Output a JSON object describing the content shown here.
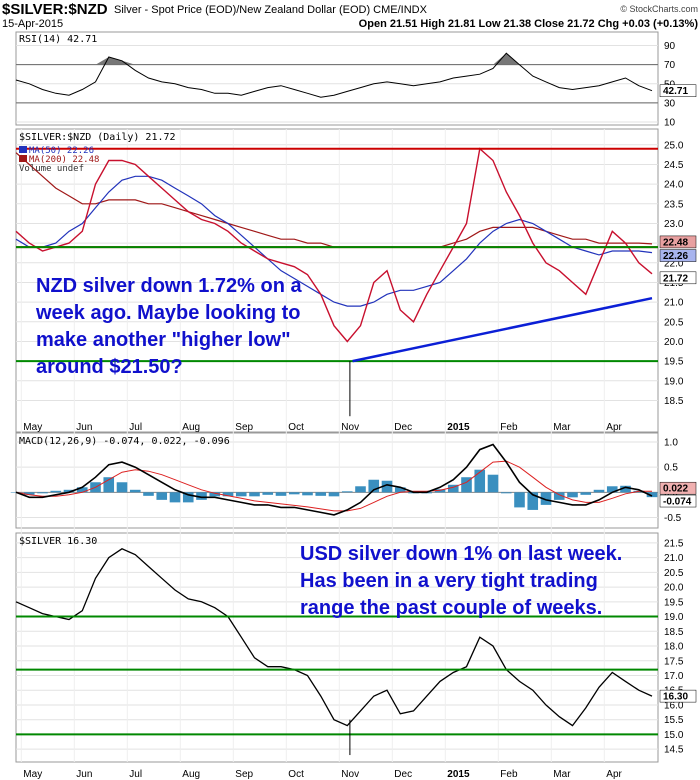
{
  "header": {
    "title": "$SILVER:$NZD",
    "subtitle": "Silver - Spot Price (EOD)/New Zealand Dollar (EOD)  CME/INDX",
    "copyright": "© StockCharts.com",
    "date": "15-Apr-2015",
    "ohlc": "Open 21.51  High 21.81  Low 21.38  Close 21.72  Chg +0.03 (+0.13%)"
  },
  "x_axis": {
    "months": [
      "May",
      "Jun",
      "Jul",
      "Aug",
      "Sep",
      "Oct",
      "Nov",
      "Dec",
      "2015",
      "Feb",
      "Mar",
      "Apr"
    ]
  },
  "chart_data": [
    {
      "type": "line",
      "name": "rsi",
      "label": "RSI(14) 42.71",
      "ylim": [
        10,
        100
      ],
      "ticks": [
        90,
        70,
        50,
        30,
        10
      ],
      "reference_lines": [
        70,
        30
      ],
      "last_value": "42.71",
      "x": [
        0,
        5,
        10,
        15,
        20,
        25,
        30,
        35,
        40,
        45,
        50,
        55,
        60,
        65,
        70,
        75,
        80,
        85,
        90,
        95,
        100,
        105,
        110,
        115,
        120,
        125,
        130,
        135,
        140,
        145,
        150,
        155,
        160,
        165,
        170,
        175,
        180,
        185,
        190,
        195,
        200,
        205,
        210,
        215,
        220,
        225,
        230,
        235,
        240
      ],
      "values": [
        54,
        50,
        44,
        40,
        38,
        44,
        52,
        78,
        74,
        64,
        56,
        52,
        50,
        46,
        44,
        40,
        40,
        38,
        42,
        46,
        48,
        44,
        40,
        36,
        38,
        42,
        46,
        50,
        52,
        50,
        48,
        50,
        52,
        56,
        58,
        60,
        66,
        82,
        70,
        58,
        52,
        46,
        44,
        46,
        48,
        52,
        56,
        48,
        42.71
      ]
    },
    {
      "type": "line",
      "name": "nzd_price",
      "label": "$SILVER:$NZD (Daily) 21.72",
      "legend": [
        "MA(50) 22.26",
        "MA(200) 22.48",
        "Volume undef"
      ],
      "ylim": [
        17.8,
        25.3
      ],
      "ticks": [
        25.0,
        24.5,
        24.0,
        23.5,
        23.0,
        22.5,
        22.0,
        21.5,
        21.0,
        20.5,
        20.0,
        19.5,
        19.0,
        18.5
      ],
      "last_labels": [
        "22.48",
        "22.26",
        "21.72"
      ],
      "horizontal_lines": [
        24.9,
        22.4,
        19.5
      ],
      "trendline": [
        [
          127,
          19.5
        ],
        [
          240,
          21.1
        ]
      ],
      "x": [
        0,
        5,
        10,
        15,
        20,
        25,
        30,
        35,
        40,
        45,
        50,
        55,
        60,
        65,
        70,
        75,
        80,
        85,
        90,
        95,
        100,
        105,
        110,
        115,
        120,
        125,
        130,
        135,
        140,
        145,
        150,
        155,
        160,
        165,
        170,
        175,
        180,
        185,
        190,
        195,
        200,
        205,
        210,
        215,
        220,
        225,
        230,
        235,
        240
      ],
      "values": [
        22.8,
        22.5,
        22.3,
        22.4,
        22.5,
        22.8,
        24.0,
        24.6,
        24.6,
        24.5,
        24.2,
        23.9,
        23.6,
        23.3,
        23.1,
        23.0,
        22.8,
        22.5,
        22.3,
        22.1,
        22.0,
        21.9,
        21.7,
        21.2,
        20.4,
        20.0,
        20.4,
        21.5,
        21.8,
        20.8,
        20.5,
        21.2,
        21.8,
        22.4,
        23.0,
        24.9,
        24.6,
        23.8,
        23.2,
        22.5,
        22.0,
        21.8,
        21.5,
        21.2,
        22.0,
        22.8,
        22.5,
        22.0,
        21.72
      ],
      "ma50": [
        22.6,
        22.4,
        22.4,
        22.5,
        22.8,
        23.0,
        23.4,
        23.8,
        24.1,
        24.2,
        24.2,
        24.1,
        23.9,
        23.7,
        23.5,
        23.2,
        23.0,
        22.7,
        22.4,
        22.1,
        21.8,
        21.6,
        21.4,
        21.2,
        21.0,
        20.9,
        20.9,
        21.0,
        21.2,
        21.3,
        21.3,
        21.4,
        21.5,
        21.8,
        22.1,
        22.5,
        22.8,
        23.0,
        23.1,
        23.0,
        22.8,
        22.6,
        22.4,
        22.3,
        22.2,
        22.3,
        22.3,
        22.3,
        22.26
      ],
      "ma200": [
        24.8,
        24.5,
        24.2,
        23.9,
        23.7,
        23.5,
        23.5,
        23.6,
        23.6,
        23.6,
        23.5,
        23.5,
        23.4,
        23.3,
        23.2,
        23.1,
        23.0,
        22.9,
        22.8,
        22.7,
        22.6,
        22.6,
        22.5,
        22.5,
        22.4,
        22.4,
        22.4,
        22.4,
        22.4,
        22.4,
        22.4,
        22.4,
        22.4,
        22.5,
        22.6,
        22.8,
        22.9,
        22.9,
        22.9,
        22.9,
        22.8,
        22.7,
        22.6,
        22.6,
        22.5,
        22.5,
        22.5,
        22.5,
        22.48
      ]
    },
    {
      "type": "line",
      "name": "macd",
      "label": "MACD(12,26,9) -0.074, 0.022, -0.096",
      "ylim": [
        -0.65,
        1.1
      ],
      "ticks": [
        1.0,
        0.5,
        0.0,
        -0.5
      ],
      "last_labels": [
        "0.022",
        "-0.074"
      ],
      "x": [
        0,
        5,
        10,
        15,
        20,
        25,
        30,
        35,
        40,
        45,
        50,
        55,
        60,
        65,
        70,
        75,
        80,
        85,
        90,
        95,
        100,
        105,
        110,
        115,
        120,
        125,
        130,
        135,
        140,
        145,
        150,
        155,
        160,
        165,
        170,
        175,
        180,
        185,
        190,
        195,
        200,
        205,
        210,
        215,
        220,
        225,
        230,
        235,
        240
      ],
      "macd": [
        0.0,
        -0.1,
        -0.1,
        -0.05,
        0.0,
        0.1,
        0.3,
        0.55,
        0.6,
        0.5,
        0.35,
        0.2,
        0.05,
        -0.05,
        -0.1,
        -0.1,
        -0.15,
        -0.2,
        -0.25,
        -0.25,
        -0.3,
        -0.3,
        -0.35,
        -0.4,
        -0.45,
        -0.35,
        -0.2,
        0.05,
        0.15,
        0.1,
        0.0,
        0.0,
        0.1,
        0.25,
        0.5,
        0.85,
        0.95,
        0.6,
        0.2,
        -0.05,
        -0.15,
        -0.2,
        -0.25,
        -0.25,
        -0.15,
        0.0,
        0.1,
        0.05,
        -0.074
      ],
      "signal": [
        0.0,
        -0.05,
        -0.08,
        -0.08,
        -0.05,
        0.0,
        0.1,
        0.25,
        0.4,
        0.45,
        0.42,
        0.35,
        0.25,
        0.15,
        0.05,
        -0.02,
        -0.07,
        -0.12,
        -0.17,
        -0.2,
        -0.23,
        -0.26,
        -0.29,
        -0.33,
        -0.37,
        -0.37,
        -0.32,
        -0.2,
        -0.08,
        0.0,
        0.02,
        0.02,
        0.04,
        0.1,
        0.2,
        0.4,
        0.6,
        0.62,
        0.5,
        0.3,
        0.1,
        -0.05,
        -0.15,
        -0.2,
        -0.2,
        -0.12,
        -0.03,
        0.02,
        0.022
      ],
      "histogram": [
        0.0,
        -0.05,
        -0.02,
        0.03,
        0.05,
        0.1,
        0.2,
        0.3,
        0.2,
        0.05,
        -0.07,
        -0.15,
        -0.2,
        -0.2,
        -0.15,
        -0.08,
        -0.08,
        -0.08,
        -0.08,
        -0.05,
        -0.07,
        -0.04,
        -0.06,
        -0.07,
        -0.08,
        0.02,
        0.12,
        0.25,
        0.23,
        0.1,
        -0.02,
        -0.02,
        0.06,
        0.15,
        0.3,
        0.45,
        0.35,
        -0.02,
        -0.3,
        -0.35,
        -0.25,
        -0.15,
        -0.1,
        -0.05,
        0.05,
        0.12,
        0.13,
        0.03,
        -0.096
      ]
    },
    {
      "type": "line",
      "name": "usd_price",
      "label": "$SILVER 16.30",
      "ylim": [
        14.2,
        21.7
      ],
      "ticks": [
        21.5,
        21.0,
        20.5,
        20.0,
        19.5,
        19.0,
        18.5,
        18.0,
        17.5,
        17.0,
        16.5,
        16.0,
        15.5,
        15.0,
        14.5
      ],
      "last_label": "16.30",
      "horizontal_lines": [
        19.0,
        17.2,
        15.0
      ],
      "x": [
        0,
        5,
        10,
        15,
        20,
        25,
        30,
        35,
        40,
        45,
        50,
        55,
        60,
        65,
        70,
        75,
        80,
        85,
        90,
        95,
        100,
        105,
        110,
        115,
        120,
        125,
        130,
        135,
        140,
        145,
        150,
        155,
        160,
        165,
        170,
        175,
        180,
        185,
        190,
        195,
        200,
        205,
        210,
        215,
        220,
        225,
        230,
        235,
        240
      ],
      "values": [
        19.5,
        19.3,
        19.1,
        19.0,
        18.9,
        19.2,
        20.3,
        21.0,
        21.3,
        21.1,
        20.7,
        20.3,
        19.9,
        19.6,
        19.5,
        19.3,
        19.0,
        18.3,
        17.6,
        17.3,
        17.3,
        17.2,
        17.0,
        16.3,
        15.5,
        15.3,
        15.8,
        16.3,
        16.5,
        15.7,
        15.8,
        16.3,
        16.8,
        17.1,
        17.3,
        18.3,
        18.0,
        17.2,
        16.8,
        16.5,
        16.0,
        15.6,
        15.3,
        15.9,
        16.6,
        17.1,
        16.8,
        16.5,
        16.3
      ]
    }
  ],
  "annotations": {
    "nzd_note": [
      "NZD silver down 1.72% on a",
      "week ago. Maybe looking to",
      "make another \"higher low\"",
      "around $21.50?"
    ],
    "usd_note": [
      "USD silver down 1% on last week.",
      "Has been in a very tight trading",
      "range the past couple of weeks."
    ]
  },
  "colors": {
    "price": "#c8102e",
    "ma50": "#2233bb",
    "ma200": "#a01818",
    "rsi": "#000000",
    "rsi_fill": "#777777",
    "macd": "#000000",
    "signal": "#dd2222",
    "hist": "#3a8fbf",
    "red_line": "#cc0000",
    "green_line": "#008800",
    "trend_line": "#0b1fd6",
    "annotation": "#1010cc"
  }
}
